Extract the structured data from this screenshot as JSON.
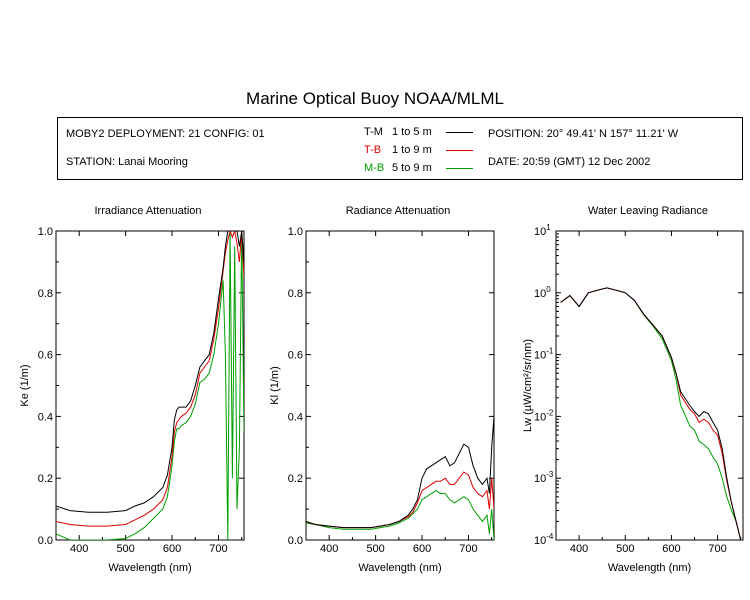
{
  "title": "Marine Optical Buoy NOAA/MLML",
  "info": {
    "deployment": "MOBY2 DEPLOYMENT: 21 CONFIG: 01",
    "station": "STATION: Lanai Mooring",
    "position": "POSITION: 20° 49.41' N   157° 11.21' W",
    "date": "DATE: 20:59 (GMT) 12 Dec 2002"
  },
  "legend": [
    {
      "label": "T-M",
      "range": "1 to 5  m",
      "color": "#000000"
    },
    {
      "label": "T-B",
      "range": "1 to 9  m",
      "color": "#dd0000"
    },
    {
      "label": "M-B",
      "range": "5 to 9  m",
      "color": "#00a000"
    }
  ],
  "chart_data": [
    {
      "type": "line",
      "title": "Irradiance Attenuation",
      "xlabel": "Wavelength (nm)",
      "ylabel": "Ke  (1/m)",
      "xlim": [
        350,
        755
      ],
      "ylim": [
        0,
        1.0
      ],
      "xticks": [
        400,
        500,
        600,
        700
      ],
      "yticks": [
        0.0,
        0.2,
        0.4,
        0.6,
        0.8,
        1.0
      ],
      "ytick_labels": [
        "0.0",
        "0.2",
        "0.4",
        "0.6",
        "0.8",
        "1.0"
      ],
      "x": [
        350,
        380,
        420,
        460,
        500,
        520,
        540,
        560,
        580,
        590,
        600,
        605,
        610,
        615,
        620,
        630,
        640,
        650,
        660,
        670,
        680,
        690,
        700,
        710,
        715,
        720,
        725,
        730,
        735,
        740,
        745,
        750,
        755
      ],
      "series": [
        {
          "name": "T-M",
          "values": [
            0.11,
            0.095,
            0.09,
            0.09,
            0.095,
            0.11,
            0.12,
            0.14,
            0.17,
            0.21,
            0.3,
            0.39,
            0.42,
            0.43,
            0.43,
            0.43,
            0.45,
            0.5,
            0.56,
            0.58,
            0.6,
            0.67,
            0.78,
            0.88,
            0.95,
            1.0,
            1.0,
            1.0,
            1.0,
            1.0,
            0.95,
            1.0,
            0.9
          ]
        },
        {
          "name": "T-B",
          "values": [
            0.06,
            0.05,
            0.045,
            0.045,
            0.05,
            0.065,
            0.08,
            0.1,
            0.13,
            0.17,
            0.27,
            0.35,
            0.38,
            0.39,
            0.4,
            0.41,
            0.43,
            0.47,
            0.54,
            0.56,
            0.58,
            0.65,
            0.75,
            0.87,
            0.93,
            0.97,
            1.0,
            0.98,
            1.0,
            0.96,
            0.9,
            1.0,
            0.85
          ]
        },
        {
          "name": "M-B",
          "values": [
            0.02,
            0.0,
            0.0,
            0.0,
            0.005,
            0.02,
            0.04,
            0.07,
            0.1,
            0.14,
            0.24,
            0.32,
            0.36,
            0.36,
            0.37,
            0.38,
            0.4,
            0.44,
            0.51,
            0.52,
            0.54,
            0.6,
            0.7,
            0.84,
            0.6,
            0.0,
            1.0,
            0.2,
            0.95,
            0.1,
            0.3,
            1.0,
            0.35
          ]
        }
      ]
    },
    {
      "type": "line",
      "title": "Radiance Attenuation",
      "xlabel": "Wavelength (nm)",
      "ylabel": "Kl  (1/m)",
      "xlim": [
        350,
        755
      ],
      "ylim": [
        0,
        1.0
      ],
      "xticks": [
        400,
        500,
        600,
        700
      ],
      "yticks": [
        0.0,
        0.2,
        0.4,
        0.6,
        0.8,
        1.0
      ],
      "ytick_labels": [
        "0.0",
        "0.2",
        "0.4",
        "0.6",
        "0.8",
        "1.0"
      ],
      "x": [
        350,
        370,
        400,
        430,
        460,
        490,
        510,
        530,
        550,
        570,
        580,
        590,
        600,
        610,
        620,
        630,
        640,
        650,
        660,
        670,
        680,
        690,
        700,
        710,
        720,
        730,
        740,
        745,
        750,
        755
      ],
      "series": [
        {
          "name": "T-M",
          "values": [
            0.06,
            0.05,
            0.045,
            0.04,
            0.04,
            0.04,
            0.045,
            0.05,
            0.06,
            0.08,
            0.1,
            0.13,
            0.2,
            0.23,
            0.24,
            0.25,
            0.26,
            0.27,
            0.24,
            0.25,
            0.28,
            0.31,
            0.3,
            0.24,
            0.2,
            0.18,
            0.2,
            0.15,
            0.3,
            0.4
          ]
        },
        {
          "name": "T-B",
          "values": [
            0.06,
            0.05,
            0.045,
            0.04,
            0.04,
            0.04,
            0.045,
            0.05,
            0.06,
            0.075,
            0.09,
            0.12,
            0.16,
            0.17,
            0.18,
            0.19,
            0.19,
            0.2,
            0.18,
            0.18,
            0.2,
            0.22,
            0.21,
            0.17,
            0.15,
            0.14,
            0.16,
            0.1,
            0.2,
            0.1
          ]
        },
        {
          "name": "M-B",
          "values": [
            0.055,
            0.05,
            0.04,
            0.035,
            0.035,
            0.035,
            0.04,
            0.045,
            0.055,
            0.07,
            0.085,
            0.1,
            0.13,
            0.14,
            0.15,
            0.16,
            0.15,
            0.15,
            0.13,
            0.12,
            0.13,
            0.14,
            0.13,
            0.1,
            0.08,
            0.06,
            0.08,
            0.02,
            0.1,
            0.0
          ]
        }
      ]
    },
    {
      "type": "line",
      "title": "Water Leaving Radiance",
      "xlabel": "Wavelength (nm)",
      "ylabel": "Lw  (µW/cm²/sr/nm)",
      "scale": "log",
      "xlim": [
        350,
        755
      ],
      "ylim": [
        0.0001,
        10
      ],
      "xticks": [
        400,
        500,
        600,
        700
      ],
      "yticks": [
        -4,
        -3,
        -2,
        -1,
        0,
        1
      ],
      "x": [
        360,
        380,
        400,
        420,
        440,
        460,
        480,
        500,
        520,
        540,
        560,
        580,
        600,
        610,
        620,
        640,
        650,
        660,
        670,
        680,
        690,
        700,
        710,
        720,
        730,
        740,
        750
      ],
      "series": [
        {
          "name": "T-M",
          "values": [
            0.7,
            0.9,
            0.6,
            1.0,
            1.1,
            1.2,
            1.1,
            1.0,
            0.75,
            0.45,
            0.3,
            0.2,
            0.09,
            0.05,
            0.025,
            0.015,
            0.012,
            0.01,
            0.012,
            0.011,
            0.008,
            0.006,
            0.003,
            0.001,
            0.0004,
            0.0002,
            0.0001
          ]
        },
        {
          "name": "T-B",
          "values": [
            0.7,
            0.9,
            0.6,
            1.0,
            1.1,
            1.2,
            1.1,
            1.0,
            0.75,
            0.45,
            0.3,
            0.2,
            0.09,
            0.05,
            0.022,
            0.013,
            0.011,
            0.008,
            0.009,
            0.008,
            0.006,
            0.005,
            0.0025,
            0.0009,
            0.0004,
            0.0002,
            0.0001
          ]
        },
        {
          "name": "M-B",
          "values": [
            0.7,
            0.9,
            0.6,
            1.0,
            1.1,
            1.2,
            1.1,
            1.0,
            0.75,
            0.44,
            0.29,
            0.18,
            0.08,
            0.04,
            0.015,
            0.007,
            0.006,
            0.004,
            0.0035,
            0.003,
            0.0022,
            0.0017,
            0.001,
            0.0005,
            0.0003,
            0.0002,
            0.0001
          ]
        }
      ]
    }
  ]
}
